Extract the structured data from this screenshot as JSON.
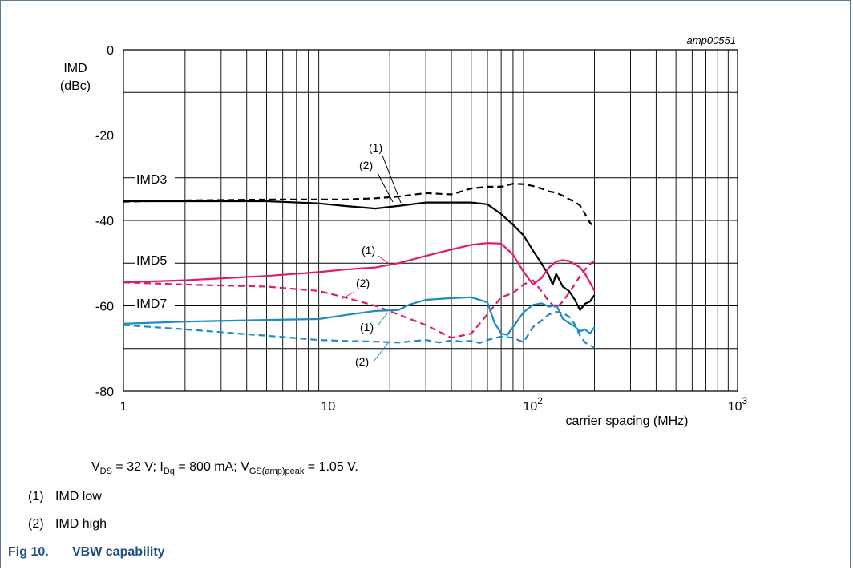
{
  "chart_data": {
    "type": "line",
    "id_label": "amp00551",
    "ylabel_line1": "IMD",
    "ylabel_line2": "(dBc)",
    "xlabel": "carrier spacing (MHz)",
    "x_scale": "log",
    "xlim": [
      1,
      1000
    ],
    "ylim": [
      -80,
      0
    ],
    "yticks": [
      0,
      -20,
      -40,
      -60,
      -80
    ],
    "ytick_labels": [
      "0",
      "-20",
      "-40",
      "-60",
      "-80"
    ],
    "xtick_labels": [
      {
        "value": 1,
        "base": "1",
        "exp": ""
      },
      {
        "value": 10,
        "base": "10",
        "exp": ""
      },
      {
        "value": 100,
        "base": "10",
        "exp": "2"
      },
      {
        "value": 1000,
        "base": "10",
        "exp": "3"
      }
    ],
    "grid": true,
    "series": [
      {
        "group": "IMD3",
        "marker": "(1)",
        "style": "solid",
        "color": "#000000",
        "x": [
          1,
          2,
          5,
          9,
          12,
          17,
          22,
          30,
          40,
          50,
          60,
          70,
          80,
          90,
          100,
          110,
          120,
          125,
          130,
          140,
          150,
          160,
          170,
          180,
          190,
          200
        ],
        "y": [
          -35.5,
          -35.5,
          -35.5,
          -36,
          -36.6,
          -37.2,
          -36.6,
          -35.8,
          -35.8,
          -35.8,
          -36.2,
          -38.5,
          -41,
          -43.5,
          -47,
          -50,
          -53,
          -55,
          -52.5,
          -55.5,
          -56.5,
          -58.5,
          -61,
          -59.5,
          -59,
          -57.5
        ]
      },
      {
        "group": "IMD3",
        "marker": "(2)",
        "style": "dashed",
        "color": "#000000",
        "x": [
          1,
          2,
          5,
          9,
          12,
          17,
          22,
          30,
          40,
          50,
          60,
          70,
          80,
          90,
          100,
          110,
          120,
          130,
          140,
          150,
          160,
          170,
          180,
          190,
          200
        ],
        "y": [
          -35.6,
          -35.3,
          -35.1,
          -35.1,
          -35.1,
          -34.8,
          -34.4,
          -33.6,
          -33.9,
          -32.5,
          -32.1,
          -32.1,
          -31.4,
          -31.5,
          -31.9,
          -32.5,
          -33.2,
          -33.5,
          -34.2,
          -35,
          -35.6,
          -36.5,
          -38.5,
          -40.5,
          -41.5
        ]
      },
      {
        "group": "IMD5",
        "marker": "(1)",
        "style": "solid",
        "color": "#e0196e",
        "x": [
          1,
          2,
          5,
          9,
          12,
          17,
          22,
          30,
          40,
          50,
          60,
          70,
          80,
          90,
          100,
          110,
          120,
          130,
          140,
          150,
          160,
          170,
          180,
          190,
          200
        ],
        "y": [
          -54.5,
          -54,
          -53,
          -52.1,
          -51.5,
          -51,
          -50,
          -48.3,
          -46.8,
          -45.7,
          -45.3,
          -45.4,
          -48,
          -52,
          -55,
          -53.5,
          -51,
          -49.6,
          -49.3,
          -49.5,
          -50.2,
          -51,
          -52.5,
          -54.5,
          -56.5
        ]
      },
      {
        "group": "IMD5",
        "marker": "(2)",
        "style": "dashed",
        "color": "#e0196e",
        "x": [
          1,
          2,
          5,
          9,
          12,
          17,
          22,
          30,
          40,
          50,
          60,
          70,
          80,
          90,
          100,
          110,
          120,
          130,
          140,
          150,
          160,
          170,
          180,
          190,
          200
        ],
        "y": [
          -54.5,
          -55,
          -55.5,
          -56.5,
          -58,
          -60,
          -62,
          -64.5,
          -67.5,
          -66.5,
          -62,
          -58,
          -57,
          -55,
          -54,
          -56.5,
          -59,
          -60.5,
          -59,
          -57,
          -55,
          -53,
          -51.5,
          -50.2,
          -49.5
        ]
      },
      {
        "group": "IMD7",
        "marker": "(1)",
        "style": "solid",
        "color": "#1a8cc0",
        "x": [
          1,
          2,
          5,
          9,
          12,
          17,
          22,
          25,
          30,
          40,
          50,
          60,
          65,
          70,
          75,
          80,
          90,
          100,
          110,
          120,
          130,
          140,
          150,
          160,
          170,
          180,
          190,
          200
        ],
        "y": [
          -64.2,
          -63.7,
          -63.3,
          -63.1,
          -62.2,
          -61.2,
          -61,
          -59.7,
          -58.6,
          -58.2,
          -58,
          -59.2,
          -64,
          -66.5,
          -66.8,
          -65,
          -61.5,
          -59.8,
          -59.4,
          -60.2,
          -59.8,
          -63,
          -64,
          -64.8,
          -66,
          -65.5,
          -66.5,
          -65
        ]
      },
      {
        "group": "IMD7",
        "marker": "(2)",
        "style": "dashed",
        "color": "#1a8cc0",
        "x": [
          1,
          2,
          5,
          9,
          12,
          17,
          22,
          30,
          35,
          40,
          45,
          50,
          55,
          60,
          70,
          80,
          90,
          100,
          110,
          120,
          130,
          140,
          150,
          160,
          170,
          180,
          190,
          200
        ],
        "y": [
          -64.5,
          -65.5,
          -67,
          -68,
          -68.2,
          -68.4,
          -68.6,
          -68,
          -68.6,
          -68.1,
          -68.4,
          -68.2,
          -68.7,
          -68,
          -67.2,
          -67.5,
          -68.5,
          -65,
          -63.5,
          -62,
          -61.4,
          -61.7,
          -62.5,
          -64.3,
          -67,
          -68.6,
          -69.2,
          -69.8
        ]
      }
    ],
    "group_labels": [
      "IMD3",
      "IMD5",
      "IMD7"
    ],
    "marker_labels": [
      "(1)",
      "(2)"
    ]
  },
  "conditions": {
    "v": "V",
    "v_sub": "DS",
    "v_text": " = 32 V; ",
    "i": "I",
    "i_sub": "Dq",
    "i_text": " = 800 mA; ",
    "vgs": "V",
    "vgs_sub": "GS(amp)peak",
    "vgs_text": " = 1.05 V."
  },
  "notes": [
    {
      "num": "(1)",
      "text": "IMD low"
    },
    {
      "num": "(2)",
      "text": "IMD high"
    }
  ],
  "caption": {
    "fig": "Fig 10.",
    "title": "VBW capability"
  }
}
